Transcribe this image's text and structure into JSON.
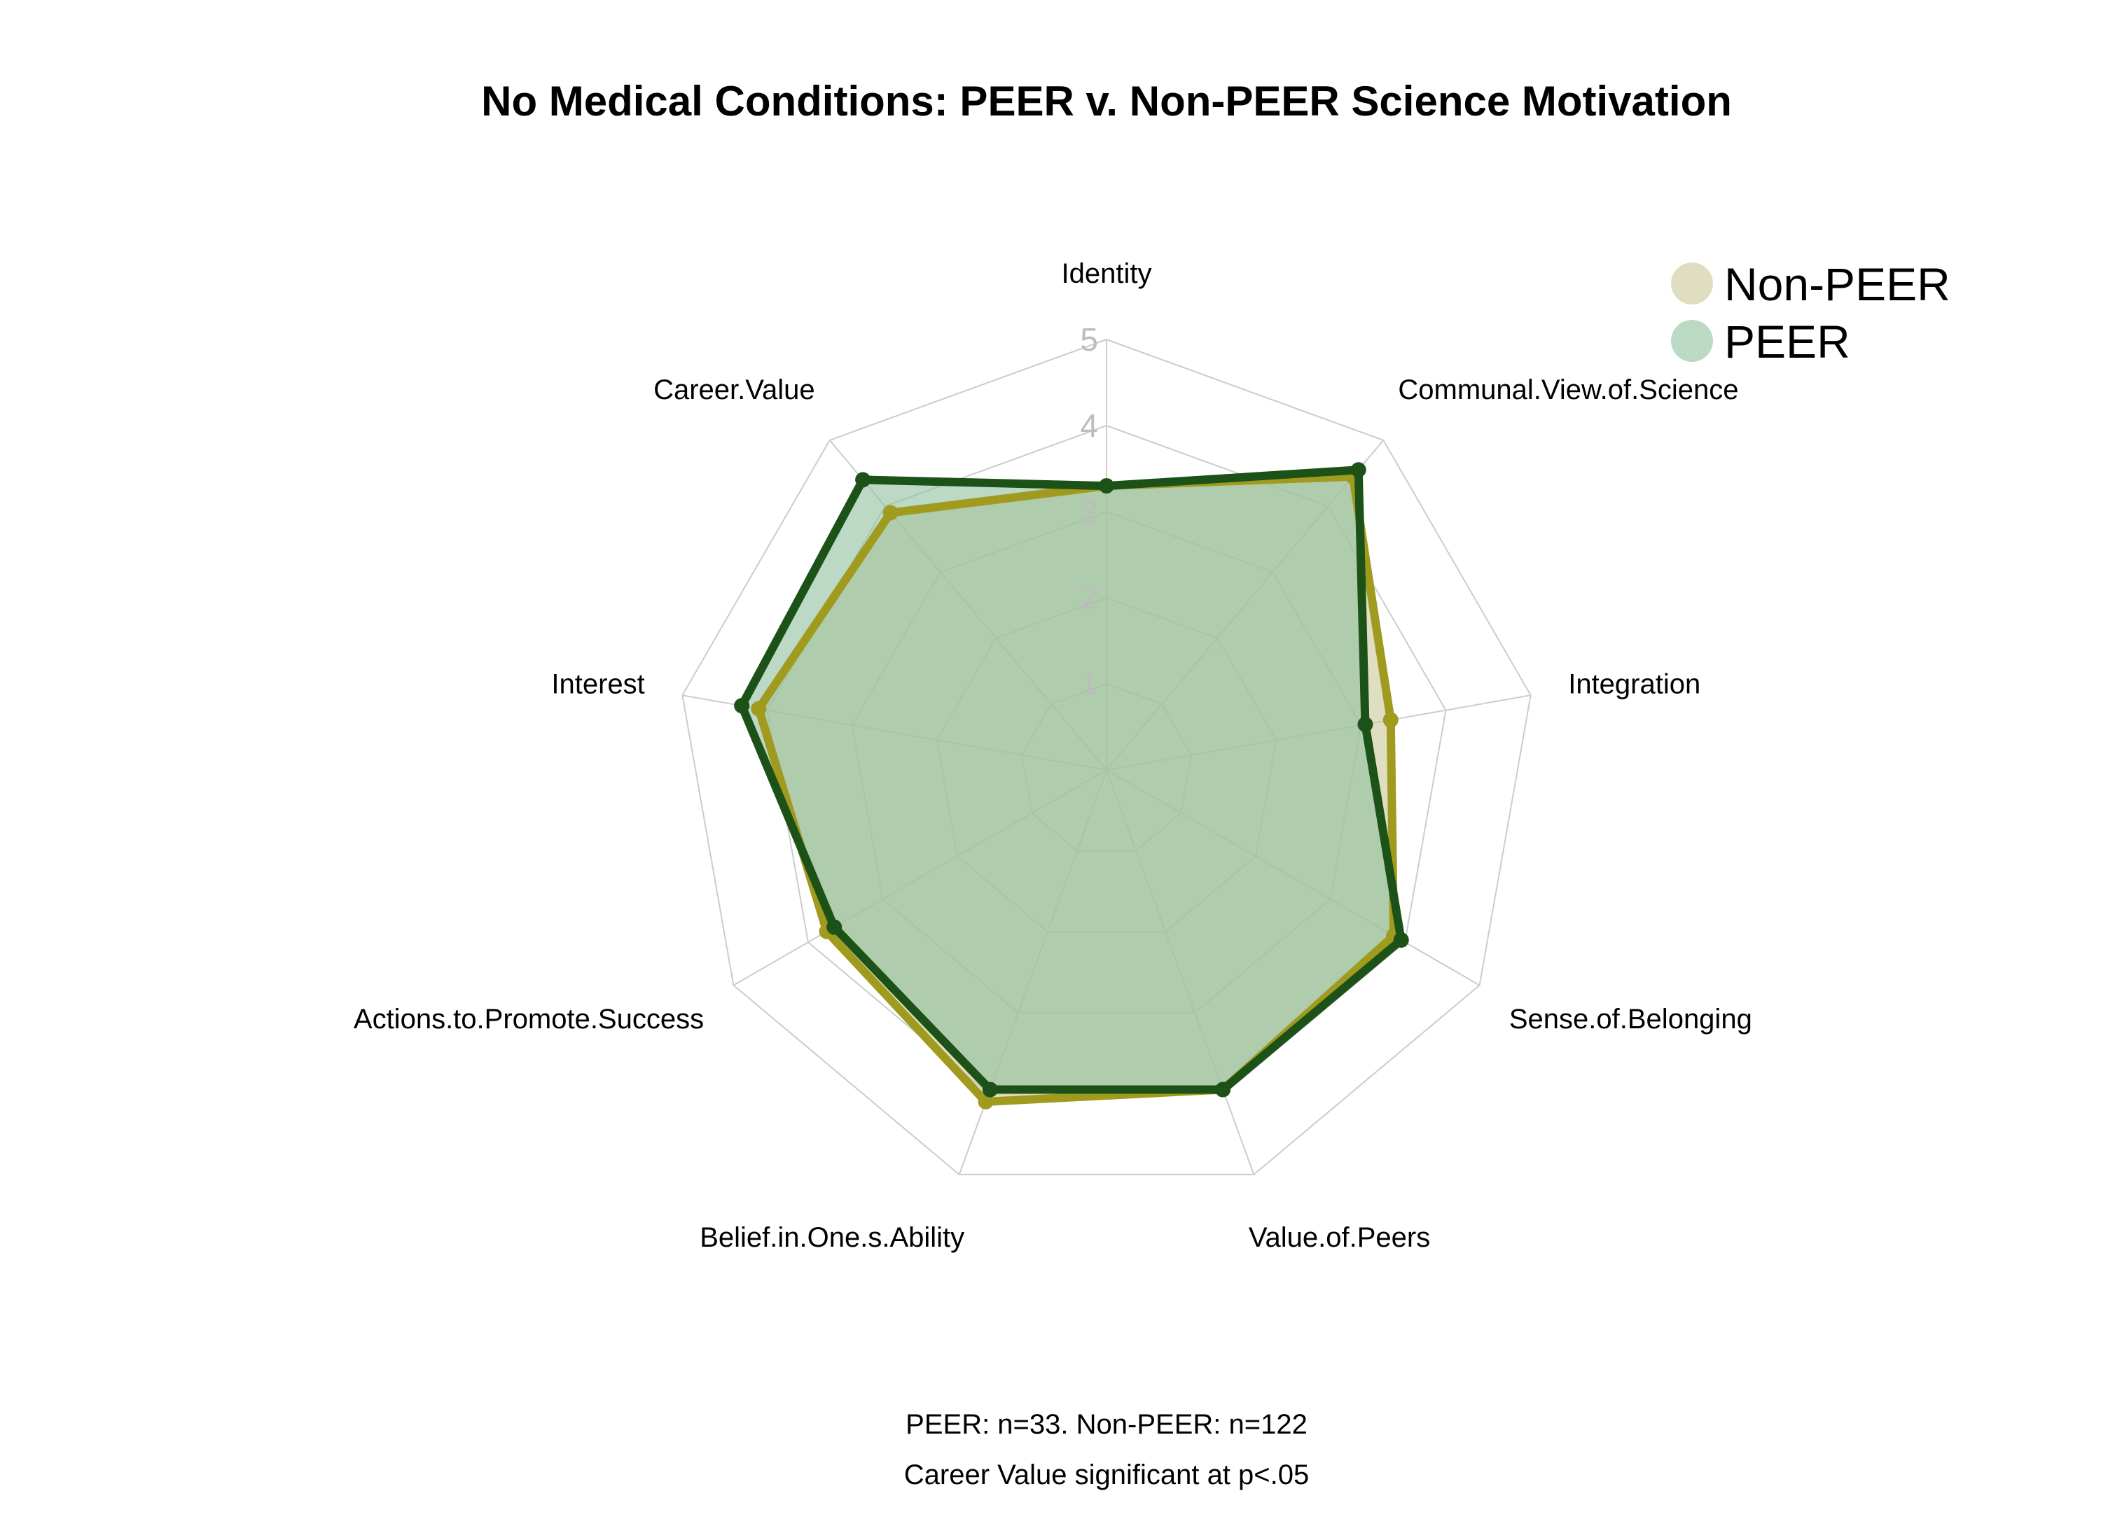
{
  "chart_data": {
    "type": "radar",
    "title": "No Medical Conditions: PEER v. Non-PEER Science Motivation",
    "axes": [
      "Identity",
      "Communal.View.of.Science",
      "Integration",
      "Sense.of.Belonging",
      "Value.of.Peers",
      "Belief.in.One.s.Ability",
      "Actions.to.Promote.Success",
      "Interest",
      "Career.Value"
    ],
    "range": [
      0,
      5
    ],
    "ticks": [
      "1",
      "2",
      "3",
      "4",
      "5"
    ],
    "grid": true,
    "legend_position": "top-right",
    "series": [
      {
        "name": "Non-PEER",
        "line_color": "#a09a1e",
        "fill_color": "#c9c896",
        "values": [
          3.3,
          4.45,
          3.35,
          3.85,
          3.95,
          4.1,
          3.75,
          4.1,
          3.9
        ]
      },
      {
        "name": "PEER",
        "line_color": "#1c5218",
        "fill_color": "#8fbf9f",
        "values": [
          3.3,
          4.55,
          3.05,
          3.95,
          3.95,
          3.95,
          3.65,
          4.3,
          4.4
        ]
      }
    ],
    "caption": [
      "PEER: n=33. Non-PEER: n=122",
      "Career Value significant at p<.05"
    ]
  }
}
